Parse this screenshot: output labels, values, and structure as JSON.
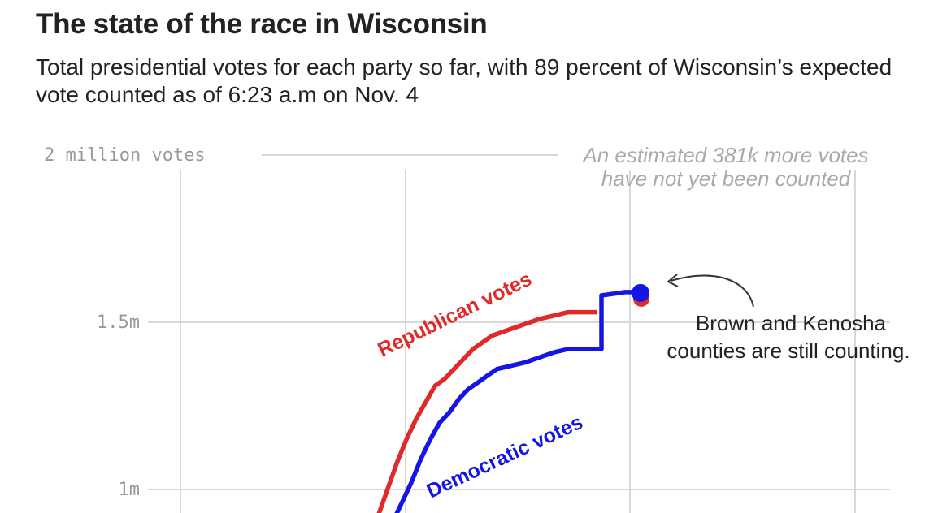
{
  "title": "The state of the race in Wisconsin",
  "subtitle": "Total presidential votes for each party so far, with 89 percent of Wisconsin’s expected vote counted as of 6:23 a.m on Nov. 4",
  "chart_data": {
    "type": "line",
    "title": "The state of the race in Wisconsin",
    "ylabel": "votes",
    "ylim": [
      0.9,
      2.0
    ],
    "y_ticks": [
      {
        "value": 2.0,
        "label": "2 million votes"
      },
      {
        "value": 1.5,
        "label": "1.5m"
      },
      {
        "value": 1.0,
        "label": "1m"
      }
    ],
    "x_gridlines": 4,
    "series": [
      {
        "name": "Republican votes",
        "color": "#e02a2a",
        "points": [
          [
            0.0,
            0.92
          ],
          [
            0.02,
            1.0
          ],
          [
            0.04,
            1.08
          ],
          [
            0.06,
            1.15
          ],
          [
            0.08,
            1.21
          ],
          [
            0.1,
            1.26
          ],
          [
            0.12,
            1.31
          ],
          [
            0.14,
            1.33
          ],
          [
            0.16,
            1.36
          ],
          [
            0.18,
            1.39
          ],
          [
            0.2,
            1.42
          ],
          [
            0.22,
            1.44
          ],
          [
            0.24,
            1.46
          ],
          [
            0.26,
            1.47
          ],
          [
            0.28,
            1.48
          ],
          [
            0.3,
            1.49
          ],
          [
            0.32,
            1.5
          ],
          [
            0.34,
            1.51
          ],
          [
            0.37,
            1.52
          ],
          [
            0.4,
            1.53
          ],
          [
            0.44,
            1.53
          ],
          [
            0.46,
            1.53
          ]
        ]
      },
      {
        "name": "Democratic votes",
        "color": "#1515e6",
        "points": [
          [
            0.03,
            0.9
          ],
          [
            0.05,
            0.96
          ],
          [
            0.07,
            1.02
          ],
          [
            0.09,
            1.09
          ],
          [
            0.11,
            1.15
          ],
          [
            0.13,
            1.2
          ],
          [
            0.15,
            1.23
          ],
          [
            0.17,
            1.27
          ],
          [
            0.19,
            1.3
          ],
          [
            0.21,
            1.32
          ],
          [
            0.23,
            1.34
          ],
          [
            0.25,
            1.36
          ],
          [
            0.28,
            1.37
          ],
          [
            0.31,
            1.38
          ],
          [
            0.33,
            1.39
          ],
          [
            0.35,
            1.4
          ],
          [
            0.37,
            1.41
          ],
          [
            0.4,
            1.42
          ],
          [
            0.44,
            1.42
          ],
          [
            0.47,
            1.42
          ],
          [
            0.47,
            1.58
          ],
          [
            0.52,
            1.59
          ],
          [
            0.55,
            1.59
          ],
          [
            0.56,
            1.59
          ]
        ]
      }
    ],
    "current_value": 1.59,
    "annotations": [
      {
        "text": "An estimated 381k more votes",
        "text2": "have not yet been counted"
      },
      {
        "text": "Brown and Kenosha",
        "text2": "counties are still counting."
      }
    ]
  }
}
